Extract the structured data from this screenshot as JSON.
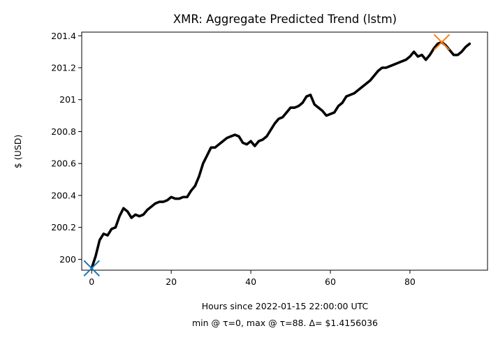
{
  "chart_data": {
    "type": "line",
    "title": "XMR: Aggregate Predicted Trend (lstm)",
    "xlabel": "Hours since 2022-01-15 22:00:00 UTC",
    "xlabel_line2": "min @ τ=0, max @ τ=88. Δ= $1.4156036",
    "ylabel": "$ (USD)",
    "xlim": [
      -2.5,
      99.5
    ],
    "ylim": [
      199.932,
      201.423
    ],
    "x_ticks": [
      0,
      20,
      40,
      60,
      80
    ],
    "y_ticks": [
      200,
      200.2,
      200.4,
      200.6,
      200.8,
      201,
      201.2,
      201.4
    ],
    "y_tick_labels": [
      "200",
      "200.2",
      "200.4",
      "200.6",
      "200.8",
      "201",
      "201.2",
      "201.4"
    ],
    "grid": false,
    "series": [
      {
        "color": "#000000",
        "x": [
          0,
          1,
          2,
          3,
          4,
          5,
          6,
          7,
          8,
          9,
          10,
          11,
          12,
          13,
          14,
          15,
          16,
          17,
          18,
          19,
          20,
          21,
          22,
          23,
          24,
          25,
          26,
          27,
          28,
          29,
          30,
          31,
          32,
          33,
          34,
          35,
          36,
          37,
          38,
          39,
          40,
          41,
          42,
          43,
          44,
          45,
          46,
          47,
          48,
          49,
          50,
          51,
          52,
          53,
          54,
          55,
          56,
          57,
          58,
          59,
          60,
          61,
          62,
          63,
          64,
          65,
          66,
          67,
          68,
          69,
          70,
          71,
          72,
          73,
          74,
          75,
          76,
          77,
          78,
          79,
          80,
          81,
          82,
          83,
          84,
          85,
          86,
          87,
          88,
          89,
          90,
          91,
          92,
          93,
          94,
          95
        ],
        "values": [
          199.944,
          200.02,
          200.12,
          200.16,
          200.15,
          200.19,
          200.2,
          200.27,
          200.32,
          200.3,
          200.26,
          200.28,
          200.27,
          200.28,
          200.31,
          200.33,
          200.35,
          200.36,
          200.36,
          200.37,
          200.39,
          200.38,
          200.38,
          200.39,
          200.39,
          200.43,
          200.46,
          200.52,
          200.6,
          200.65,
          200.7,
          200.7,
          200.72,
          200.74,
          200.76,
          200.77,
          200.78,
          200.77,
          200.73,
          200.72,
          200.74,
          200.71,
          200.74,
          200.75,
          200.77,
          200.81,
          200.85,
          200.88,
          200.89,
          200.92,
          200.95,
          200.95,
          200.96,
          200.98,
          201.02,
          201.03,
          200.97,
          200.95,
          200.93,
          200.9,
          200.91,
          200.92,
          200.96,
          200.98,
          201.02,
          201.03,
          201.04,
          201.06,
          201.08,
          201.1,
          201.12,
          201.15,
          201.18,
          201.2,
          201.2,
          201.21,
          201.22,
          201.23,
          201.24,
          201.25,
          201.27,
          201.3,
          201.27,
          201.28,
          201.25,
          201.28,
          201.32,
          201.35,
          201.36,
          201.34,
          201.31,
          201.28,
          201.28,
          201.3,
          201.33,
          201.35
        ]
      }
    ],
    "markers": [
      {
        "x": 0,
        "y": 199.944,
        "symbol": "x",
        "color": "#1f77b4"
      },
      {
        "x": 88,
        "y": 201.36,
        "symbol": "x",
        "color": "#ff7f0e"
      }
    ]
  }
}
